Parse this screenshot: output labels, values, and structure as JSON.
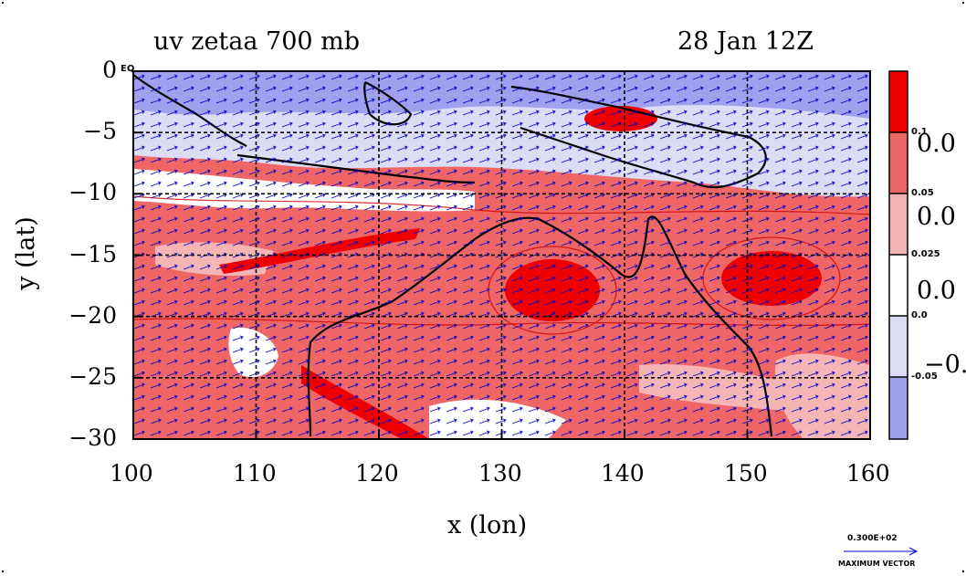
{
  "title": {
    "left": "uv zetaa 700 mb",
    "right": "28 Jan 12Z"
  },
  "xaxis": {
    "label": "x (lon)",
    "ticks": [
      "100",
      "110",
      "120",
      "130",
      "140",
      "150",
      "160"
    ]
  },
  "yaxis": {
    "label": "y (lat)",
    "ticks": [
      "0",
      "−5",
      "−10",
      "−15",
      "−20",
      "−25",
      "−30"
    ]
  },
  "corner_label": "EQ",
  "colorbar": {
    "colors": [
      "#ee0000",
      "#ee6666",
      "#f5b5b5",
      "#ffffff",
      "#dcdcf5",
      "#a0a0ee"
    ],
    "tick_labels": [
      "0.1",
      "0.05",
      "0.025",
      "0.0",
      "-0.05"
    ],
    "big_labels": [
      "0.0",
      "0.0",
      "0.0",
      "−0."
    ]
  },
  "vector_legend": {
    "value": "0.300E+02",
    "label": "MAXIMUM VECTOR"
  },
  "colors": {
    "positive_strong": "#ee0000",
    "positive": "#ee6666",
    "positive_weak": "#f5b5b5",
    "negative_weak": "#dcdcf5",
    "negative": "#a0a0ee",
    "vectors": "#0000cc",
    "contours": "#cc0000"
  }
}
